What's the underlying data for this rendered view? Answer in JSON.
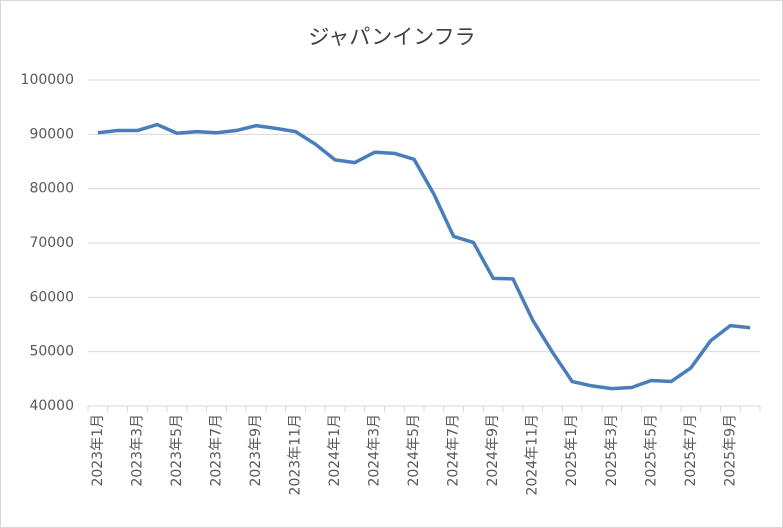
{
  "chart_data": {
    "type": "line",
    "title": "ジャパンインフラ",
    "categories": [
      "2023年1月",
      null,
      "2023年3月",
      null,
      "2023年5月",
      null,
      "2023年7月",
      null,
      "2023年9月",
      null,
      "2023年11月",
      null,
      "2024年1月",
      null,
      "2024年3月",
      null,
      "2024年5月",
      null,
      "2024年7月",
      null,
      "2024年9月",
      null,
      "2024年11月",
      null,
      "2025年1月",
      null,
      "2025年3月",
      null,
      "2025年5月",
      null,
      "2025年7月",
      null,
      "2025年9月",
      null
    ],
    "series": [
      {
        "name": "ジャパンインフラ",
        "color": "#4a7ebb",
        "values": [
          90300,
          90700,
          90700,
          91800,
          90200,
          90500,
          90300,
          90700,
          91600,
          91100,
          90500,
          88200,
          85300,
          84800,
          86700,
          86500,
          85400,
          79000,
          71200,
          70100,
          63500,
          63400,
          55800,
          49900,
          44500,
          43700,
          43200,
          43400,
          44700,
          44500,
          47000,
          52000,
          54800,
          54400
        ]
      }
    ],
    "ylim": [
      40000,
      100000
    ],
    "yticks": [
      40000,
      50000,
      60000,
      70000,
      80000,
      90000,
      100000
    ],
    "grid": true
  }
}
